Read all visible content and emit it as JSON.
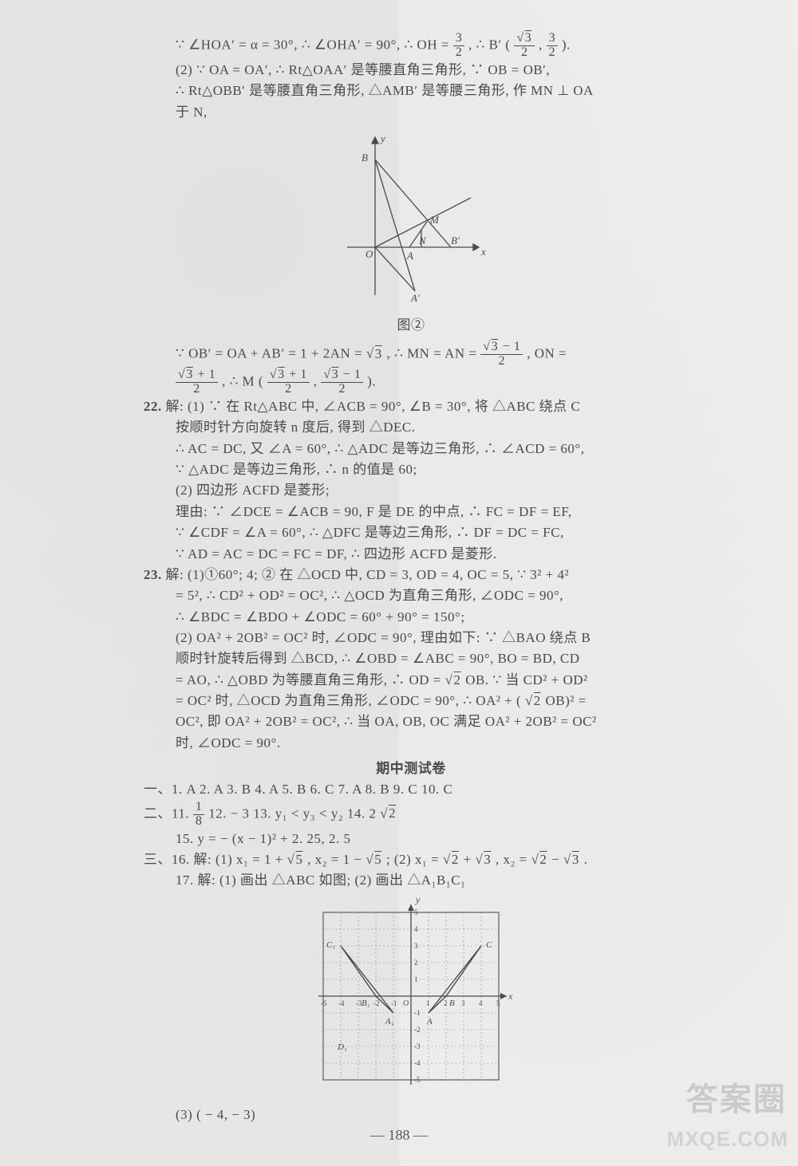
{
  "page_number": "— 188 —",
  "watermark_cn": "答案圈",
  "watermark_en": "MXQE.COM",
  "lines": {
    "l1a": "∵ ∠HOA′ = α = 30°, ∴ ∠OHA′ = 90°, ∴ OH = ",
    "l1b": ", ∴ B′",
    "l2": "(2) ∵ OA = OA′, ∴ Rt△OAA′ 是等腰直角三角形, ∵ OB = OB′,",
    "l3": "∴ Rt△OBB′ 是等腰直角三角形, △AMB′ 是等腰三角形, 作 MN ⊥ OA",
    "l4": "于 N,",
    "fig2_caption": "图②",
    "l5a": "∵ OB′ = OA + AB′ = 1 + 2AN = ",
    "l5b": ", ∴ MN = AN = ",
    "l5c": ", ON =",
    "l6a": ", ∴ M",
    "q22": "22.",
    "l7": "解: (1) ∵ 在 Rt△ABC 中, ∠ACB = 90°, ∠B = 30°, 将 △ABC 绕点 C",
    "l8": "按顺时针方向旋转 n 度后, 得到 △DEC.",
    "l9": "∴ AC = DC, 又 ∠A = 60°, ∴ △ADC 是等边三角形, ∴ ∠ACD = 60°,",
    "l10": "∵ △ADC 是等边三角形, ∴ n 的值是 60;",
    "l11": "(2) 四边形 ACFD 是菱形;",
    "l12": "理由: ∵ ∠DCE = ∠ACB = 90, F 是 DE 的中点, ∴ FC = DF = EF,",
    "l13": "∵ ∠CDF = ∠A = 60°, ∴ △DFC 是等边三角形, ∴ DF = DC = FC,",
    "l14": "∵ AD = AC = DC = FC = DF, ∴ 四边形 ACFD 是菱形.",
    "q23": "23.",
    "l15": "解: (1)①60°; 4; ② 在 △OCD 中, CD = 3, OD = 4, OC = 5, ∵ 3² + 4²",
    "l16": "= 5², ∴ CD² + OD² = OC², ∴ △OCD 为直角三角形, ∠ODC = 90°,",
    "l17": "∴ ∠BDC = ∠BDO + ∠ODC = 60° + 90° = 150°;",
    "l18": "(2) OA² + 2OB² = OC² 时, ∠ODC = 90°, 理由如下: ∵ △BAO 绕点 B",
    "l19": "顺时针旋转后得到 △BCD, ∴ ∠OBD = ∠ABC = 90°, BO = BD, CD",
    "l20a": "= AO, ∴ △OBD 为等腰直角三角形, ∴ OD = ",
    "l20b": "OB. ∵ 当 CD² + OD²",
    "l21a": "= OC² 时, △OCD 为直角三角形, ∠ODC = 90°, ∴ OA² + (",
    "l21b": "OB)² =",
    "l22": "OC², 即 OA² + 2OB² = OC², ∴ 当 OA, OB, OC 满足 OA² + 2OB² = OC²",
    "l23": "时, ∠ODC = 90°.",
    "mid_title": "期中测试卷",
    "sec1": "一、1. A   2. A   3. B   4. A   5. B   6. C   7. A   8. B   9. C   10. C",
    "sec2a": "二、11. ",
    "sec2b": "   12. − 3   13. y₁ < y₃ < y₂   14. 2",
    "l15b": "15. y = − (x − 1)² + 2. 25, 2. 5",
    "sec3a": "三、16. 解: (1) x₁ = 1 + ",
    "sec3b": ", x₂ = 1 − ",
    "sec3c": "; (2) x₁ = ",
    "sec3d": " + ",
    "sec3e": ", x₂ = ",
    "sec3f": " − ",
    "sec3g": ".",
    "l17b": "17. 解: (1) 画出 △ABC 如图; (2) 画出 △A₁B₁C₁",
    "l18b": "(3) ( − 4,  − 3)"
  },
  "chart": {
    "grid_color": "#6b6b6b",
    "dash_color": "#8a8a8a",
    "stroke_color": "#4a4a4a",
    "bg": "transparent",
    "axis_label_fontsize": 11,
    "title_fontsize": 14,
    "grid_range": [
      -5,
      5
    ],
    "tick_step": 1,
    "pointsA": {
      "A": [
        1,
        -1
      ],
      "B": [
        2,
        0
      ],
      "C": [
        4,
        3
      ]
    },
    "pointsA1": {
      "A1": [
        -1,
        -1
      ],
      "B1": [
        -2,
        0
      ],
      "C1": [
        -4,
        3
      ]
    },
    "pointD": {
      "D1": [
        -4,
        -3
      ]
    }
  },
  "fig2": {
    "stroke": "#4a4a4a",
    "axis_color": "#4a4a4a",
    "label_fontsize": 13,
    "labels": {
      "O": "O",
      "A": "A",
      "Ap": "A′",
      "B": "B",
      "Bp": "B′",
      "M": "M",
      "N": "N",
      "x": "x",
      "y": "y"
    }
  }
}
